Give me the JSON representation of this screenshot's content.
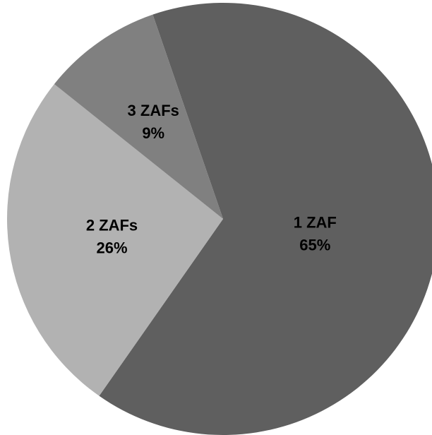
{
  "chart_data": {
    "type": "pie",
    "title": "",
    "start_angle_deg": -19,
    "direction": "clockwise",
    "slices": [
      {
        "category": "1 ZAF",
        "value": 65,
        "label_text": "1 ZAF",
        "percent_text": "65%",
        "color": "#5f5f5f"
      },
      {
        "category": "2 ZAFs",
        "value": 26,
        "label_text": "2 ZAFs",
        "percent_text": "26%",
        "color": "#b2b2b2"
      },
      {
        "category": "3 ZAFs",
        "value": 9,
        "label_text": "3 ZAFs",
        "percent_text": "9%",
        "color": "#808080"
      }
    ],
    "legend": "none",
    "data_labels": "inside"
  }
}
